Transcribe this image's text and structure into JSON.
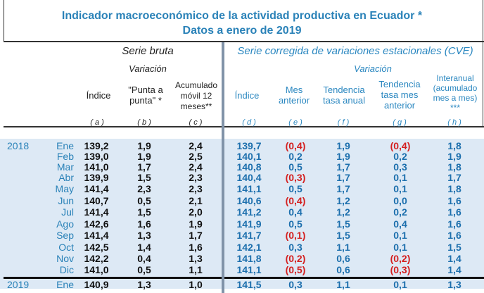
{
  "title": {
    "line1": "Indicador macroeconómico de la actividad  productiva en Ecuador *",
    "line2": "Datos a enero de 2019"
  },
  "headers": {
    "serie_bruta": "Serie bruta",
    "variacion_bruta": "Variación",
    "cve": "Serie corregida de variaciones estacionales (CVE)",
    "variacion_cve": "Variación",
    "cols": [
      {
        "label": "Índice",
        "letter": "( a )"
      },
      {
        "label": "\"Punta a punta\" *",
        "letter": "( b )"
      },
      {
        "label": "Acumulado móvil 12 meses**",
        "letter": "( c )"
      },
      {
        "label": "Índice",
        "letter": "( d )"
      },
      {
        "label": "Mes anterior",
        "letter": "( e )"
      },
      {
        "label": "Tendencia tasa anual",
        "letter": "( f )"
      },
      {
        "label": "Tendencia tasa mes anterior",
        "letter": "( g )"
      },
      {
        "label": "Interanual (acumulado mes a mes) ***",
        "letter": "( h )"
      }
    ]
  },
  "rows": [
    {
      "year": "2018",
      "month": "Ene",
      "v": [
        "139,2",
        "1,9",
        "2,4",
        "139,7",
        "(0,4)",
        "1,9",
        "(0,4)",
        "1,8"
      ]
    },
    {
      "year": "",
      "month": "Feb",
      "v": [
        "139,0",
        "1,9",
        "2,5",
        "140,1",
        "0,2",
        "1,9",
        "0,2",
        "1,9"
      ]
    },
    {
      "year": "",
      "month": "Mar",
      "v": [
        "141,0",
        "1,7",
        "2,4",
        "140,8",
        "0,5",
        "1,7",
        "0,3",
        "1,8"
      ]
    },
    {
      "year": "",
      "month": "Abr",
      "v": [
        "139,9",
        "1,5",
        "2,3",
        "140,4",
        "(0,3)",
        "1,7",
        "0,1",
        "1,7"
      ]
    },
    {
      "year": "",
      "month": "May",
      "v": [
        "141,4",
        "2,3",
        "2,3",
        "141,1",
        "0,5",
        "1,7",
        "0,1",
        "1,8"
      ]
    },
    {
      "year": "",
      "month": "Jun",
      "v": [
        "140,7",
        "0,5",
        "2,1",
        "140,6",
        "(0,4)",
        "1,2",
        "0,0",
        "1,6"
      ]
    },
    {
      "year": "",
      "month": "Jul",
      "v": [
        "141,4",
        "1,5",
        "2,0",
        "141,2",
        "0,4",
        "1,2",
        "0,2",
        "1,6"
      ]
    },
    {
      "year": "",
      "month": "Ago",
      "v": [
        "142,6",
        "1,6",
        "1,9",
        "141,9",
        "0,5",
        "1,5",
        "0,4",
        "1,6"
      ]
    },
    {
      "year": "",
      "month": "Sep",
      "v": [
        "141,4",
        "1,3",
        "1,7",
        "141,7",
        "(0,1)",
        "1,5",
        "0,1",
        "1,6"
      ]
    },
    {
      "year": "",
      "month": "Oct",
      "v": [
        "142,5",
        "1,4",
        "1,6",
        "142,1",
        "0,3",
        "1,1",
        "0,1",
        "1,5"
      ]
    },
    {
      "year": "",
      "month": "Nov",
      "v": [
        "142,2",
        "0,4",
        "1,3",
        "141,8",
        "(0,2)",
        "0,6",
        "(0,2)",
        "1,4"
      ]
    },
    {
      "year": "",
      "month": "Dic",
      "v": [
        "141,0",
        "0,5",
        "1,1",
        "141,1",
        "(0,5)",
        "0,6",
        "(0,3)",
        "1,4"
      ]
    },
    {
      "year": "2019",
      "month": "Ene",
      "v": [
        "140,9",
        "1,3",
        "1,0",
        "141,5",
        "0,3",
        "1,1",
        "0,1",
        "1,3"
      ]
    }
  ],
  "colors": {
    "title": "#2a82b8",
    "value_blue": "#1c6fad",
    "negative": "#d42020",
    "row_bg": "#dde9f5"
  }
}
